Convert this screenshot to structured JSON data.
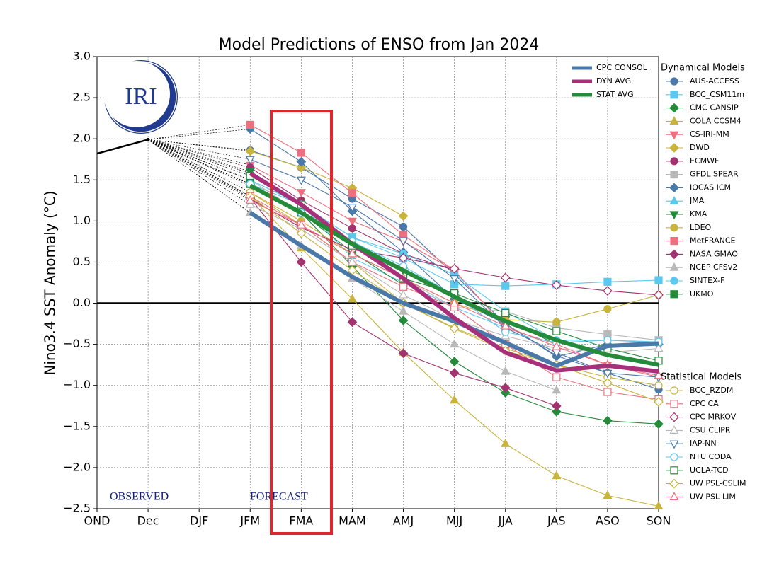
{
  "chart_data": {
    "type": "line",
    "title": "Model Predictions of ENSO from Jan 2024",
    "y_label": "Nino3.4 SST Anomaly (°C)",
    "logo_text": "IRI",
    "annotations": [
      "OBSERVED",
      "FORECAST"
    ],
    "categories": [
      "OND",
      "Dec",
      "DJF",
      "JFM",
      "FMA",
      "MAM",
      "AMJ",
      "MJJ",
      "JJA",
      "JAS",
      "ASO",
      "SON"
    ],
    "ylim": [
      -2.5,
      3.0
    ],
    "yticks": [
      {
        "value": -2.5,
        "label": "−2.5"
      },
      {
        "value": -2.0,
        "label": "−2.0"
      },
      {
        "value": -1.5,
        "label": "−1.5"
      },
      {
        "value": -1.0,
        "label": "−1.0"
      },
      {
        "value": -0.5,
        "label": "−0.5"
      },
      {
        "value": 0,
        "label": "0.0"
      },
      {
        "value": 0.5,
        "label": "0.5"
      },
      {
        "value": 1.0,
        "label": "1.0"
      },
      {
        "value": 1.5,
        "label": "1.5"
      },
      {
        "value": 2.0,
        "label": "2.0"
      },
      {
        "value": 2.5,
        "label": "2.5"
      },
      {
        "value": 3.0,
        "label": "3.0"
      }
    ],
    "grid": true,
    "observed": {
      "color": "#000000",
      "values": [
        1.82,
        1.99,
        null,
        null,
        null,
        null,
        null,
        null,
        null,
        null,
        null,
        null
      ]
    },
    "averages": [
      {
        "name": "CPC CONSOL",
        "color": "#4a78a8",
        "values": [
          null,
          null,
          null,
          1.1,
          0.7,
          0.32,
          0.0,
          -0.22,
          -0.48,
          -0.76,
          -0.52,
          -0.49
        ]
      },
      {
        "name": "DYN AVG",
        "color": "#a8307a",
        "values": [
          null,
          null,
          null,
          1.58,
          1.2,
          0.72,
          0.3,
          -0.18,
          -0.6,
          -0.82,
          -0.76,
          -0.83
        ]
      },
      {
        "name": "STAT AVG",
        "color": "#238b3a",
        "values": [
          null,
          null,
          null,
          1.43,
          1.1,
          0.72,
          0.4,
          0.08,
          -0.22,
          -0.45,
          -0.63,
          -0.75
        ]
      }
    ],
    "series_groups": [
      {
        "title": "Dynamical Models",
        "series": [
          {
            "name": "AUS-ACCESS",
            "color": "#4a78a8",
            "marker": "circle",
            "filled": true,
            "values": [
              null,
              null,
              null,
              1.86,
              1.65,
              1.27,
              0.93,
              0.35,
              -0.25,
              -0.64,
              -0.85,
              -1.05
            ]
          },
          {
            "name": "BCC_CSM11m",
            "color": "#5bc8ee",
            "marker": "square",
            "filled": true,
            "values": [
              null,
              null,
              null,
              1.45,
              1.2,
              0.8,
              0.55,
              0.23,
              0.21,
              0.23,
              0.26,
              0.28
            ]
          },
          {
            "name": "CMC CANSIP",
            "color": "#238b3a",
            "marker": "diamond",
            "filled": true,
            "values": [
              null,
              null,
              null,
              1.45,
              1.1,
              0.45,
              -0.21,
              -0.71,
              -1.09,
              -1.32,
              -1.43,
              -1.47
            ]
          },
          {
            "name": "COLA CCSM4",
            "color": "#c8b43c",
            "marker": "triangle-up",
            "filled": true,
            "values": [
              null,
              null,
              null,
              1.3,
              0.67,
              0.05,
              -0.6,
              -1.18,
              -1.71,
              -2.1,
              -2.34,
              -2.47
            ]
          },
          {
            "name": "CS-IRI-MM",
            "color": "#ee6f7f",
            "marker": "triangle-down",
            "filled": true,
            "values": [
              null,
              null,
              null,
              1.68,
              1.35,
              1.0,
              0.75,
              0.4,
              -0.3,
              -0.5,
              -0.75,
              -0.9
            ]
          },
          {
            "name": "DWD",
            "color": "#c8b43c",
            "marker": "diamond",
            "filled": true,
            "values": [
              null,
              null,
              null,
              1.85,
              1.65,
              1.4,
              1.06,
              null,
              null,
              null,
              null,
              null
            ]
          },
          {
            "name": "ECMWF",
            "color": "#a2336f",
            "marker": "circle",
            "filled": true,
            "values": [
              null,
              null,
              null,
              1.65,
              1.25,
              0.91,
              0.6,
              0.4,
              null,
              null,
              null,
              null
            ]
          },
          {
            "name": "GFDL SPEAR",
            "color": "#b8b8b8",
            "marker": "square",
            "filled": true,
            "values": [
              null,
              null,
              null,
              1.5,
              1.1,
              0.7,
              0.3,
              -0.05,
              -0.1,
              -0.3,
              -0.38,
              -0.45
            ]
          },
          {
            "name": "IOCAS ICM",
            "color": "#4a78a8",
            "marker": "diamond",
            "filled": true,
            "values": [
              null,
              null,
              null,
              2.12,
              1.72,
              1.12,
              0.62,
              0.05,
              -0.25,
              -0.65,
              -0.5,
              -0.5
            ]
          },
          {
            "name": "JMA",
            "color": "#5bc8ee",
            "marker": "triangle-up",
            "filled": true,
            "values": [
              null,
              null,
              null,
              1.5,
              1.2,
              0.55,
              0.25,
              -0.05,
              -0.3,
              null,
              null,
              null
            ]
          },
          {
            "name": "KMA",
            "color": "#238b3a",
            "marker": "triangle-down",
            "filled": true,
            "values": [
              null,
              null,
              null,
              1.6,
              1.2,
              0.75,
              0.4,
              0.1,
              -0.2,
              -0.5,
              null,
              null
            ]
          },
          {
            "name": "LDEO",
            "color": "#c8b43c",
            "marker": "circle",
            "filled": true,
            "values": [
              null,
              null,
              null,
              1.35,
              1.0,
              0.6,
              0.3,
              0.0,
              -0.2,
              -0.23,
              -0.07,
              0.1
            ]
          },
          {
            "name": "MetFRANCE",
            "color": "#ee6f7f",
            "marker": "square",
            "filled": true,
            "values": [
              null,
              null,
              null,
              2.17,
              1.83,
              1.34,
              0.83,
              0.4,
              -0.3,
              null,
              null,
              null
            ]
          },
          {
            "name": "NASA GMAO",
            "color": "#a2336f",
            "marker": "diamond",
            "filled": true,
            "values": [
              null,
              null,
              null,
              1.28,
              0.5,
              -0.23,
              -0.61,
              -0.85,
              -1.03,
              -1.25,
              null,
              null
            ]
          },
          {
            "name": "NCEP CFSv2",
            "color": "#b8b8b8",
            "marker": "triangle-up",
            "filled": true,
            "values": [
              null,
              null,
              null,
              1.1,
              0.7,
              0.3,
              -0.1,
              -0.5,
              -0.83,
              -1.06,
              null,
              null
            ]
          },
          {
            "name": "SINTEX-F",
            "color": "#5bc8ee",
            "marker": "circle",
            "filled": true,
            "values": [
              null,
              null,
              null,
              1.5,
              1.2,
              0.8,
              0.6,
              0.35,
              -0.1,
              -0.45,
              -0.45,
              -0.48
            ]
          },
          {
            "name": "UKMO",
            "color": "#238b3a",
            "marker": "square",
            "filled": true,
            "values": [
              null,
              null,
              null,
              1.45,
              1.1,
              0.62,
              0.22,
              null,
              null,
              null,
              null,
              null
            ]
          }
        ]
      },
      {
        "title": "Statistical Models",
        "series": [
          {
            "name": "BCC_RZDM",
            "color": "#c8b43c",
            "marker": "circle",
            "filled": false,
            "values": [
              null,
              null,
              null,
              1.35,
              0.95,
              0.5,
              0.0,
              -0.3,
              -0.55,
              -0.75,
              -0.9,
              -1.0
            ]
          },
          {
            "name": "CPC CA",
            "color": "#ee6f7f",
            "marker": "square",
            "filled": false,
            "values": [
              null,
              null,
              null,
              1.3,
              0.95,
              0.5,
              0.2,
              -0.05,
              -0.5,
              -0.9,
              -1.08,
              -1.17
            ]
          },
          {
            "name": "CPC MRKOV",
            "color": "#a2336f",
            "marker": "diamond",
            "filled": false,
            "values": [
              null,
              null,
              null,
              1.27,
              0.92,
              0.65,
              0.55,
              0.42,
              0.31,
              0.22,
              0.15,
              0.1
            ]
          },
          {
            "name": "CSU CLIPR",
            "color": "#b8b8b8",
            "marker": "triangle-up",
            "filled": false,
            "values": [
              null,
              null,
              null,
              1.2,
              0.9,
              0.5,
              0.1,
              -0.2,
              -0.4,
              -0.55,
              -0.6,
              -0.55
            ]
          },
          {
            "name": "IAP-NN",
            "color": "#4a78a8",
            "marker": "triangle-down",
            "filled": false,
            "values": [
              null,
              null,
              null,
              1.75,
              1.5,
              1.17,
              0.76,
              0.3,
              -0.3,
              -0.6,
              -0.85,
              -0.9
            ]
          },
          {
            "name": "NTU CODA",
            "color": "#5bc8ee",
            "marker": "circle",
            "filled": false,
            "values": [
              null,
              null,
              null,
              1.45,
              1.1,
              0.75,
              0.45,
              0.1,
              -0.35,
              -0.48,
              -0.45,
              -0.47
            ]
          },
          {
            "name": "UCLA-TCD",
            "color": "#238b3a",
            "marker": "square",
            "filled": false,
            "values": [
              null,
              null,
              null,
              1.55,
              1.2,
              0.7,
              0.3,
              0.12,
              -0.12,
              -0.34,
              -0.55,
              -0.7
            ]
          },
          {
            "name": "UW PSL-CSLIM",
            "color": "#c8b43c",
            "marker": "diamond",
            "filled": false,
            "values": [
              null,
              null,
              null,
              1.3,
              0.85,
              0.4,
              0.0,
              -0.31,
              -0.58,
              -0.75,
              -0.97,
              -1.2
            ]
          },
          {
            "name": "UW PSL-LIM",
            "color": "#ee6f7f",
            "marker": "triangle-up",
            "filled": false,
            "values": [
              null,
              null,
              null,
              1.25,
              0.95,
              0.6,
              0.3,
              0.0,
              -0.28,
              -0.53,
              -0.75,
              -0.88
            ]
          }
        ]
      }
    ]
  }
}
